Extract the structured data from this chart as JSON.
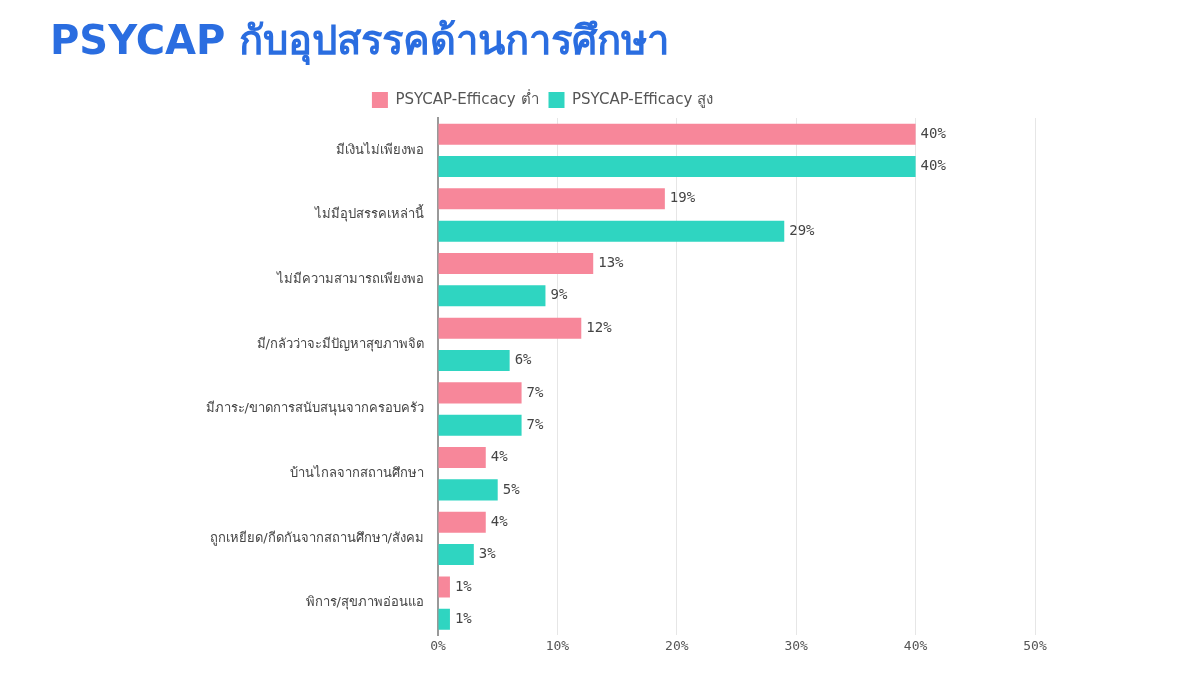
{
  "chart_data": {
    "type": "bar",
    "orientation": "horizontal",
    "title": "PSYCAP กับอุปสรรคด้านการศึกษา",
    "categories": [
      "มีเงินไม่เพียงพอ",
      "ไม่มีอุปสรรคเหล่านี้",
      "ไม่มีความสามารถเพียงพอ",
      "มี/กลัวว่าจะมีปัญหาสุขภาพจิต",
      "มีภาระ/ขาดการสนับสนุนจากครอบครัว",
      "บ้านไกลจากสถานศึกษา",
      "ถูกเหยียด/กีดกันจากสถานศึกษา/สังคม",
      "พิการ/สุขภาพอ่อนแอ"
    ],
    "series": [
      {
        "name": "PSYCAP-Efficacy ต่ำ",
        "color": "#f7879a",
        "values": [
          40,
          19,
          13,
          12,
          7,
          4,
          4,
          1
        ],
        "value_labels": [
          "40%",
          "19%",
          "13%",
          "12%",
          "7%",
          "4%",
          "4%",
          "1%"
        ]
      },
      {
        "name": "PSYCAP-Efficacy สูง",
        "color": "#2fd5c1",
        "values": [
          40,
          29,
          9,
          6,
          7,
          5,
          3,
          1
        ],
        "value_labels": [
          "40%",
          "29%",
          "9%",
          "6%",
          "7%",
          "5%",
          "3%",
          "1%"
        ]
      }
    ],
    "xlim": [
      0,
      50
    ],
    "xticks": [
      {
        "value": 0,
        "label": "0%"
      },
      {
        "value": 10,
        "label": "10%"
      },
      {
        "value": 20,
        "label": "20%"
      },
      {
        "value": 30,
        "label": "30%"
      },
      {
        "value": 40,
        "label": "40%"
      },
      {
        "value": 50,
        "label": "50%"
      }
    ],
    "grid": "x",
    "legend": "top"
  }
}
